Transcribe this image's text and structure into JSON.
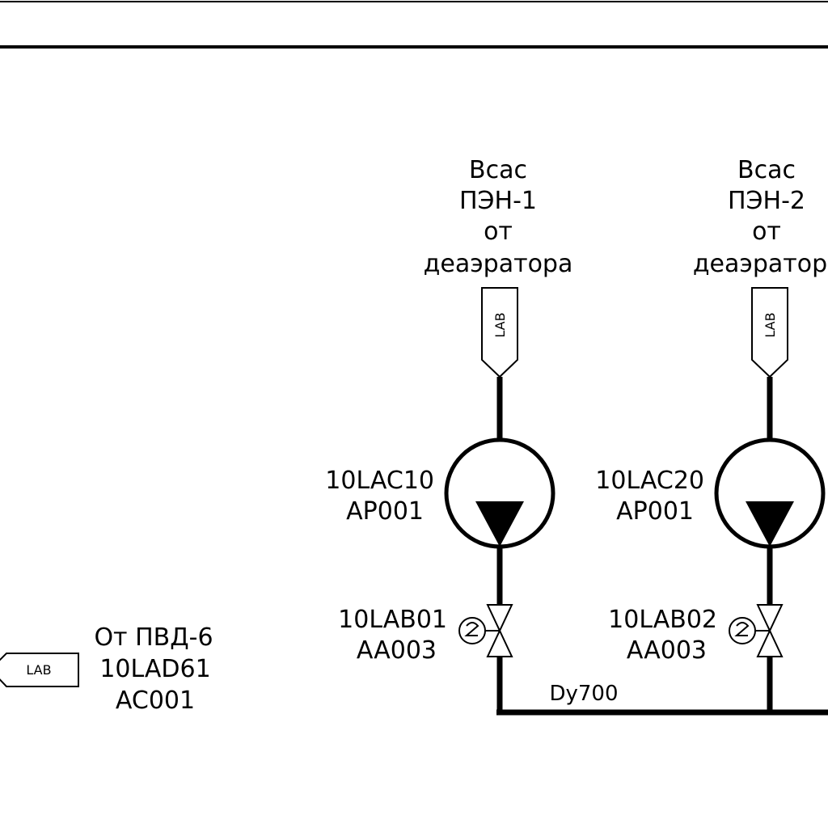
{
  "suction_1": {
    "line1": "Всас",
    "line2": "ПЭН-1",
    "line3": "от",
    "line4": "деаэратора"
  },
  "suction_2": {
    "line1": "Всас",
    "line2": "ПЭН-2",
    "line3": "от",
    "line4": "деаэратор"
  },
  "connector_tags": {
    "pump1_inlet": "LAB",
    "pump2_inlet": "LAB",
    "left_source": "LAB"
  },
  "pump_1": {
    "line1": "10LAC10",
    "line2": "AP001"
  },
  "pump_2": {
    "line1": "10LAC20",
    "line2": "AP001"
  },
  "valve_1": {
    "line1": "10LAB01",
    "line2": "AA003"
  },
  "valve_2": {
    "line1": "10LAB02",
    "line2": "AA003"
  },
  "header_pipe": {
    "size": "Dy700"
  },
  "left_source": {
    "line1": "От ПВД-6",
    "line2": "10LAD61",
    "line3": "AC001"
  }
}
